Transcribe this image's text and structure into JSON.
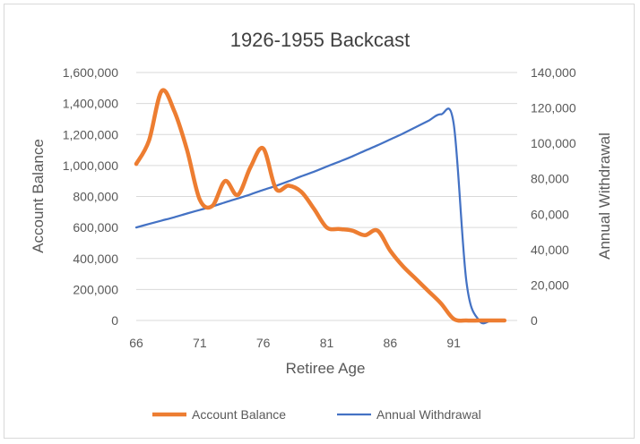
{
  "chart_data": {
    "type": "line",
    "title": "1926-1955 Backcast",
    "xlabel": "Retiree Age",
    "ylabel": "Account Balance",
    "y2label": "Annual Withdrawal",
    "xlim": [
      66,
      96
    ],
    "ylim": [
      0,
      1600000
    ],
    "y2lim": [
      0,
      140000
    ],
    "x_ticks": [
      "66",
      "71",
      "76",
      "81",
      "86",
      "91"
    ],
    "y_ticks": [
      "0",
      "200,000",
      "400,000",
      "600,000",
      "800,000",
      "1,000,000",
      "1,200,000",
      "1,400,000",
      "1,600,000"
    ],
    "y2_ticks": [
      "0",
      "20,000",
      "40,000",
      "60,000",
      "80,000",
      "100,000",
      "120,000",
      "140,000"
    ],
    "grid": true,
    "legend_position": "bottom",
    "series": [
      {
        "name": "Account Balance",
        "axis": "left",
        "color": "#ED7D31",
        "x": [
          66,
          67,
          68,
          69,
          70,
          71,
          72,
          73,
          74,
          75,
          76,
          77,
          78,
          79,
          80,
          81,
          82,
          83,
          84,
          85,
          86,
          87,
          88,
          89,
          90,
          91,
          92,
          93,
          94,
          95
        ],
        "values": [
          1010000,
          1160000,
          1480000,
          1350000,
          1100000,
          780000,
          740000,
          900000,
          810000,
          990000,
          1110000,
          850000,
          870000,
          830000,
          720000,
          600000,
          590000,
          580000,
          550000,
          580000,
          450000,
          350000,
          270000,
          190000,
          110000,
          10000,
          0,
          0,
          0,
          0
        ]
      },
      {
        "name": "Annual Withdrawal",
        "axis": "right",
        "color": "#4472C4",
        "x": [
          66,
          67,
          68,
          69,
          70,
          71,
          72,
          73,
          74,
          75,
          76,
          77,
          78,
          79,
          80,
          81,
          82,
          83,
          84,
          85,
          86,
          87,
          88,
          89,
          90,
          91,
          92,
          93,
          94,
          95
        ],
        "values": [
          52500,
          54500,
          56400,
          58300,
          60400,
          62400,
          64400,
          66700,
          68900,
          71200,
          73700,
          76000,
          78600,
          81400,
          84000,
          86900,
          89700,
          92600,
          95800,
          98900,
          102200,
          105500,
          109100,
          112700,
          116400,
          111000,
          22000,
          0,
          0,
          0
        ]
      }
    ]
  }
}
